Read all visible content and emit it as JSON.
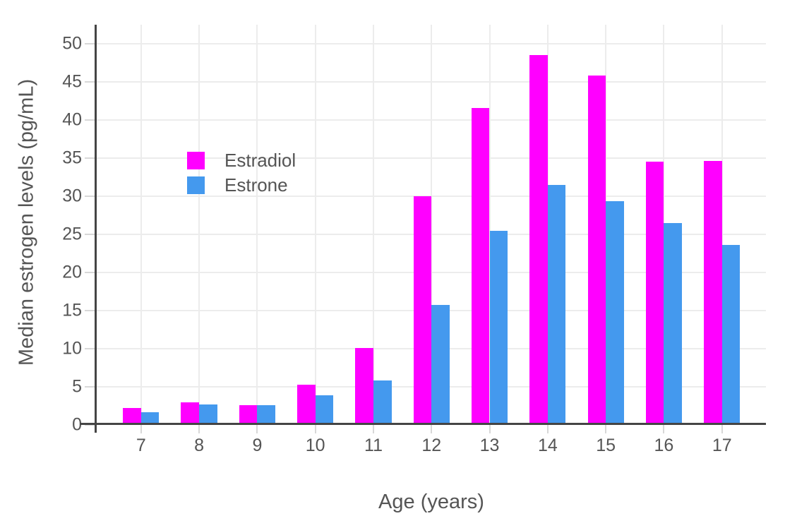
{
  "chart_data": {
    "type": "bar",
    "bar_mode": "grouped",
    "title": "",
    "xlabel": "Age (years)",
    "ylabel": "Median estrogen levels (pg/mL)",
    "categories": [
      "7",
      "8",
      "9",
      "10",
      "11",
      "12",
      "13",
      "14",
      "15",
      "16",
      "17"
    ],
    "series": [
      {
        "name": "Estradiol",
        "color": "#FF00FF",
        "values": [
          2.2,
          3.0,
          2.6,
          5.3,
          10.1,
          30.0,
          41.6,
          48.5,
          45.8,
          34.5,
          34.6
        ]
      },
      {
        "name": "Estrone",
        "color": "#4499EE",
        "values": [
          1.7,
          2.7,
          2.6,
          3.9,
          5.8,
          15.7,
          25.5,
          31.5,
          29.4,
          26.5,
          23.6
        ]
      }
    ],
    "ylim": [
      0,
      52
    ],
    "yticks": [
      0,
      5,
      10,
      15,
      20,
      25,
      30,
      35,
      40,
      45,
      50
    ],
    "grid": true,
    "legend_position": "inside top-left"
  },
  "axes": {
    "x_title": "Age (years)",
    "y_title": "Median estrogen levels (pg/mL)"
  },
  "legend": {
    "items": [
      {
        "label": "Estradiol",
        "color": "#FF00FF"
      },
      {
        "label": "Estrone",
        "color": "#4499EE"
      }
    ]
  },
  "style": {
    "background": "#FFFFFF",
    "grid_color": "#ECECEC",
    "tick_color": "#D8D8D8",
    "axis_color": "#444444",
    "text_color": "#555555"
  }
}
